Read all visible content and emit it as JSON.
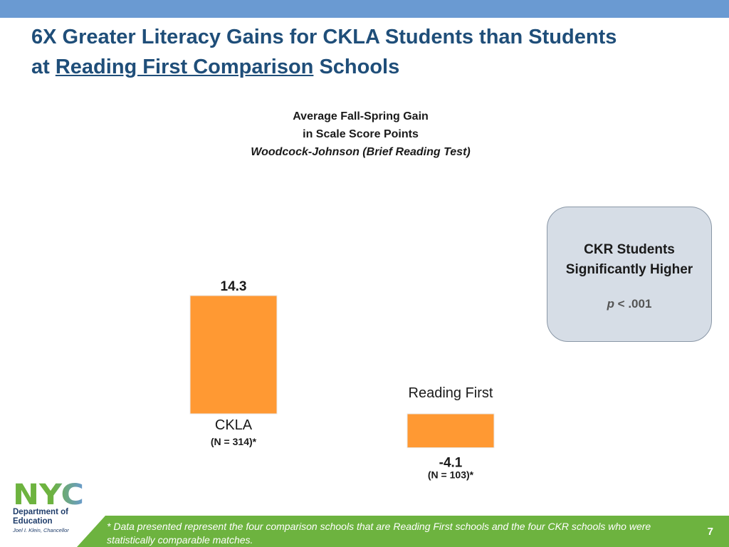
{
  "title": {
    "line1": "6X Greater Literacy Gains for CKLA Students than Students",
    "prefix": "at ",
    "underlined": "Reading First Comparison",
    "suffix": " Schools"
  },
  "chart_data": {
    "type": "bar",
    "title_lines": [
      "Average Fall-Spring Gain",
      "in Scale Score Points"
    ],
    "subtitle": "Woodcock-Johnson (Brief Reading Test)",
    "categories": [
      "CKLA",
      "Reading First"
    ],
    "values": [
      14.3,
      -4.1
    ],
    "value_labels": [
      "14.3",
      "-4.1"
    ],
    "n_labels": [
      "(N = 314)*",
      "(N = 103)*"
    ],
    "bar_color": "#ff9933",
    "ylim": [
      -4.1,
      14.3
    ],
    "grid": false,
    "legend": "none"
  },
  "callout": {
    "heading_line1": "CKR Students",
    "heading_line2": "Significantly Higher",
    "p_symbol": "p",
    "p_rest": " < .001"
  },
  "logo": {
    "icon": "nyc-logo",
    "colors": [
      "#6db33f",
      "#6a9ad2"
    ],
    "text": "NYC",
    "dept_line1": "Department of",
    "dept_line2": "Education",
    "chancellor": "Joel I. Klein, Chancellor"
  },
  "footer": {
    "note": "* Data presented represent the four comparison schools that are Reading First schools and the four CKR schools who were statistically comparable matches.",
    "page_number": "7"
  },
  "colors": {
    "top_bar": "#6a9ad2",
    "title": "#1f4e79",
    "footer": "#6db33f",
    "callout_fill": "#d6dde6"
  }
}
